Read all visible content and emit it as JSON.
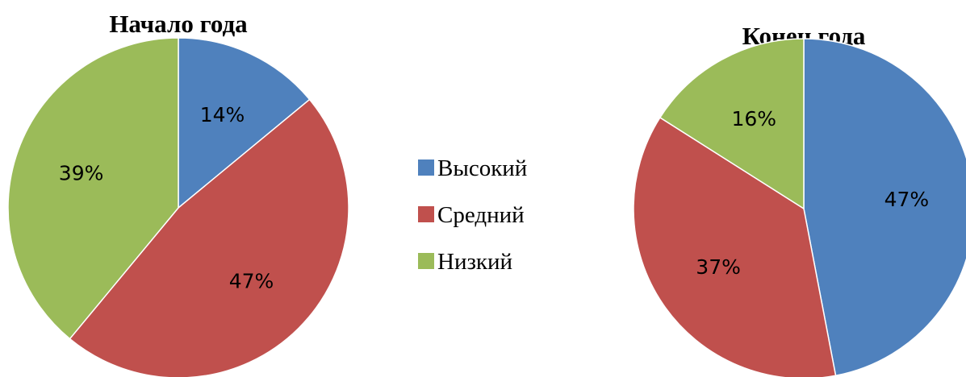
{
  "chart_data": [
    {
      "type": "pie",
      "title": "Начало года",
      "categories": [
        "Высокий",
        "Средний",
        "Низкий"
      ],
      "values": [
        14,
        47,
        39
      ],
      "labels": [
        "14%",
        "47%",
        "39%"
      ],
      "colors": [
        "#4f81bd",
        "#c0504d",
        "#9bbb59"
      ]
    },
    {
      "type": "pie",
      "title": "Конец года",
      "categories": [
        "Высокий",
        "Средний",
        "Низкий"
      ],
      "values": [
        47,
        37,
        16
      ],
      "labels": [
        "47%",
        "37%",
        "16%"
      ],
      "colors": [
        "#4f81bd",
        "#c0504d",
        "#9bbb59"
      ]
    }
  ],
  "legend": {
    "position": "center",
    "items": [
      {
        "label": "Высокий",
        "color": "#4f81bd"
      },
      {
        "label": "Средний",
        "color": "#c0504d"
      },
      {
        "label": "Низкий",
        "color": "#9bbb59"
      }
    ]
  }
}
